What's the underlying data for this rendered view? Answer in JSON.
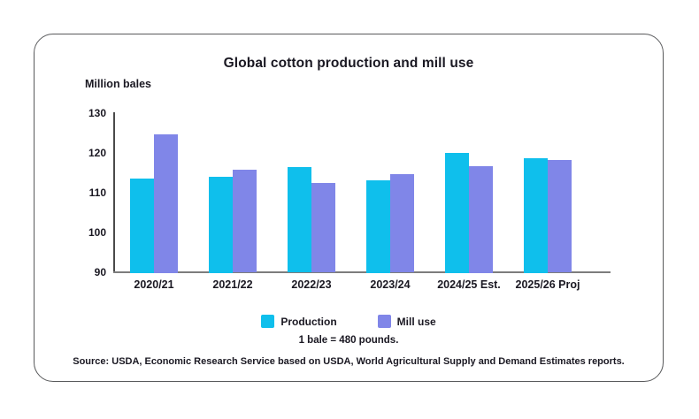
{
  "chart_data": {
    "type": "bar",
    "title": "Global cotton production and mill use",
    "ylabel": "Million bales",
    "xlabel": "",
    "categories": [
      "2020/21",
      "2021/22",
      "2022/23",
      "2023/24",
      "2024/25 Est.",
      "2025/26 Proj"
    ],
    "series": [
      {
        "name": "Production",
        "color": "#0fbfec",
        "values": [
          113.5,
          114.0,
          116.4,
          113.0,
          120.0,
          118.5
        ]
      },
      {
        "name": "Mill use",
        "color": "#8086e8",
        "values": [
          124.5,
          115.6,
          112.4,
          114.6,
          116.5,
          118.2
        ]
      }
    ],
    "ylim": [
      90,
      130
    ],
    "yticks": [
      90,
      100,
      110,
      120,
      130
    ],
    "grid": false,
    "legend_position": "bottom"
  },
  "notes": {
    "footnote": "1 bale = 480 pounds.",
    "source": "Source: USDA, Economic Research Service based on USDA, World Agricultural Supply and Demand Estimates reports."
  },
  "colors": {
    "production": "#0fbfec",
    "mill_use": "#8086e8",
    "text": "#1a1822",
    "card_border": "#58595b",
    "y_axis": "#4a4a4a",
    "x_axis": "#7d7d7d"
  }
}
